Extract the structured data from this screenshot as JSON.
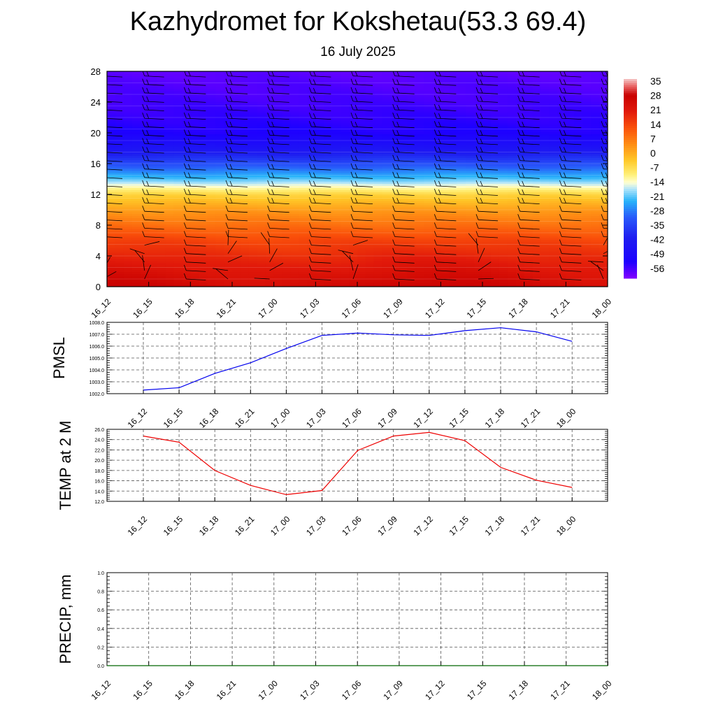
{
  "title": "Kazhydromet for Kokshetau(53.3 69.4)",
  "subtitle": "16 July 2025",
  "colors": {
    "pmsl_line": "#0000ee",
    "temp_line": "#ee0000",
    "precip_line": "#006600",
    "grid": "#555555",
    "barbs": "#000000"
  },
  "chart_data": [
    {
      "type": "heatmap",
      "name": "cross-section",
      "x": [
        "16_12",
        "16_15",
        "16_18",
        "16_21",
        "17_00",
        "17_03",
        "17_06",
        "17_09",
        "17_12",
        "17_15",
        "17_18",
        "17_21",
        "18_00"
      ],
      "y_ticks": [
        0,
        4,
        8,
        12,
        16,
        20,
        24,
        28
      ],
      "ylim": [
        0,
        28
      ],
      "profile_levels": [
        0,
        2,
        4,
        6,
        8,
        10,
        12,
        13,
        14,
        16,
        18,
        20,
        24,
        28
      ],
      "profile_temps": [
        28,
        24,
        20,
        16,
        10,
        4,
        -4,
        -12,
        -20,
        -32,
        -44,
        -52,
        -55,
        -57
      ],
      "colorbar": {
        "labels": [
          "35",
          "28",
          "21",
          "14",
          "7",
          "0",
          "-7",
          "-14",
          "-21",
          "-28",
          "-35",
          "-42",
          "-49",
          "-56"
        ],
        "range": [
          -60,
          38
        ]
      },
      "wind_barbs": true
    },
    {
      "type": "line",
      "name": "pmsl",
      "ylabel": "PMSL",
      "x": [
        "16_12",
        "16_15",
        "16_18",
        "16_21",
        "17_00",
        "17_03",
        "17_06",
        "17_09",
        "17_12",
        "17_15",
        "17_18",
        "17_21",
        "18_00"
      ],
      "values": [
        1002.3,
        1002.5,
        1003.7,
        1004.6,
        1005.8,
        1006.9,
        1007.1,
        1006.95,
        1006.9,
        1007.3,
        1007.55,
        1007.2,
        1006.4
      ],
      "ylim": [
        1002.0,
        1008.0
      ],
      "y_ticks": [
        "1002.0",
        "1003.0",
        "1004.0",
        "1005.0",
        "1006.0",
        "1007.0",
        "1008.0"
      ]
    },
    {
      "type": "line",
      "name": "temp",
      "ylabel": "TEMP at 2 M",
      "x": [
        "16_12",
        "16_15",
        "16_18",
        "16_21",
        "17_00",
        "17_03",
        "17_06",
        "17_09",
        "17_12",
        "17_15",
        "17_18",
        "17_21",
        "18_00"
      ],
      "values": [
        24.7,
        23.5,
        18.0,
        15.1,
        13.3,
        14.1,
        21.9,
        24.7,
        25.4,
        23.8,
        18.6,
        16.1,
        14.7
      ],
      "ylim": [
        12.0,
        26.0
      ],
      "y_ticks": [
        "12.0",
        "14.0",
        "16.0",
        "18.0",
        "20.0",
        "22.0",
        "24.0",
        "26.0"
      ]
    },
    {
      "type": "line",
      "name": "precip",
      "ylabel": "PRECIP, mm",
      "x": [
        "16_12",
        "16_15",
        "16_18",
        "16_21",
        "17_00",
        "17_03",
        "17_06",
        "17_09",
        "17_12",
        "17_15",
        "17_18",
        "17_21",
        "18_00"
      ],
      "values": [
        0,
        0,
        0,
        0,
        0,
        0,
        0,
        0,
        0,
        0,
        0,
        0,
        0
      ],
      "ylim": [
        0,
        1.0
      ],
      "y_ticks": [
        "0.0",
        "0.2",
        "0.4",
        "0.6",
        "0.8",
        "1.0"
      ]
    }
  ]
}
